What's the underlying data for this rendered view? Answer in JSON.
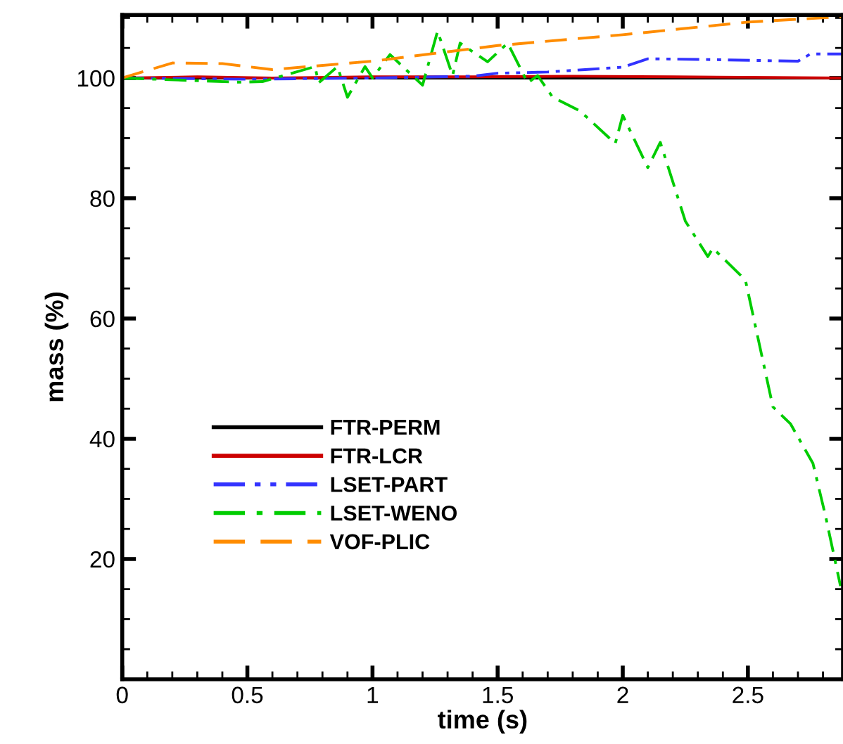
{
  "chart_data": {
    "type": "line",
    "xlabel": "time (s)",
    "ylabel": "mass (%)",
    "xlim": [
      0,
      2.88
    ],
    "ylim": [
      0,
      110.5
    ],
    "xticks": [
      0,
      {
        "value": 0.5,
        "label": "0.5"
      },
      1,
      {
        "value": 1.5,
        "label": "1.5"
      },
      2,
      {
        "value": 2.5,
        "label": "2.5"
      }
    ],
    "yticks": [
      20,
      40,
      60,
      80,
      100
    ],
    "grid": false,
    "legend": "bottom left",
    "marker": "none",
    "series": [
      {
        "name": "FTR-PERM",
        "color": "#000000",
        "line_style": "solid",
        "x": [
          0,
          0.5,
          1,
          1.5,
          2,
          2.5,
          2.88
        ],
        "values": [
          100,
          100,
          100,
          100,
          100,
          100,
          100
        ]
      },
      {
        "name": "FTR-LCR",
        "color": "#cc0000",
        "line_style": "solid",
        "x": [
          0,
          0.3,
          0.6,
          1.0,
          1.4,
          1.8,
          2.2,
          2.6,
          2.88
        ],
        "values": [
          100,
          100.2,
          100,
          100.2,
          100.2,
          100.3,
          100.2,
          100.1,
          100
        ]
      },
      {
        "name": "LSET-PART",
        "color": "#3333ff",
        "line_style": "dashdotdot",
        "x": [
          0,
          0.5,
          1.0,
          1.4,
          1.5,
          1.7,
          1.85,
          2.0,
          2.1,
          2.3,
          2.7,
          2.75,
          2.88
        ],
        "values": [
          100,
          99.8,
          100,
          100.3,
          100.8,
          101,
          101.4,
          101.8,
          103.2,
          103.1,
          102.8,
          104,
          104
        ]
      },
      {
        "name": "LSET-WENO",
        "color": "#00cc00",
        "line_style": "dashdot",
        "x": [
          0,
          0.47,
          0.56,
          0.77,
          0.785,
          0.86,
          0.9,
          0.97,
          1.0,
          1.07,
          1.2,
          1.26,
          1.32,
          1.35,
          1.46,
          1.54,
          1.62,
          1.66,
          1.72,
          1.83,
          1.97,
          2.0,
          2.1,
          2.15,
          2.25,
          2.34,
          2.36,
          2.49,
          2.6,
          2.67,
          2.76,
          2.81,
          2.87
        ],
        "values": [
          100,
          99.3,
          99.4,
          101.9,
          99.2,
          101.9,
          96.8,
          101.9,
          100,
          103.9,
          98.8,
          107.8,
          100.4,
          105.8,
          102.7,
          105.8,
          99.2,
          100.4,
          96.8,
          94.5,
          89.1,
          93.8,
          85.1,
          89.3,
          76.2,
          70.3,
          71.7,
          66.4,
          45.3,
          42.5,
          35.9,
          27.2,
          15.5
        ]
      },
      {
        "name": "VOF-PLIC",
        "color": "#ff8c00",
        "line_style": "dashed",
        "x": [
          0,
          0.2,
          0.4,
          0.6,
          1.0,
          1.5,
          2.0,
          2.5,
          2.88
        ],
        "values": [
          100,
          102.5,
          102.4,
          101.4,
          102.8,
          105.4,
          107.2,
          109.3,
          110.2
        ]
      }
    ]
  }
}
